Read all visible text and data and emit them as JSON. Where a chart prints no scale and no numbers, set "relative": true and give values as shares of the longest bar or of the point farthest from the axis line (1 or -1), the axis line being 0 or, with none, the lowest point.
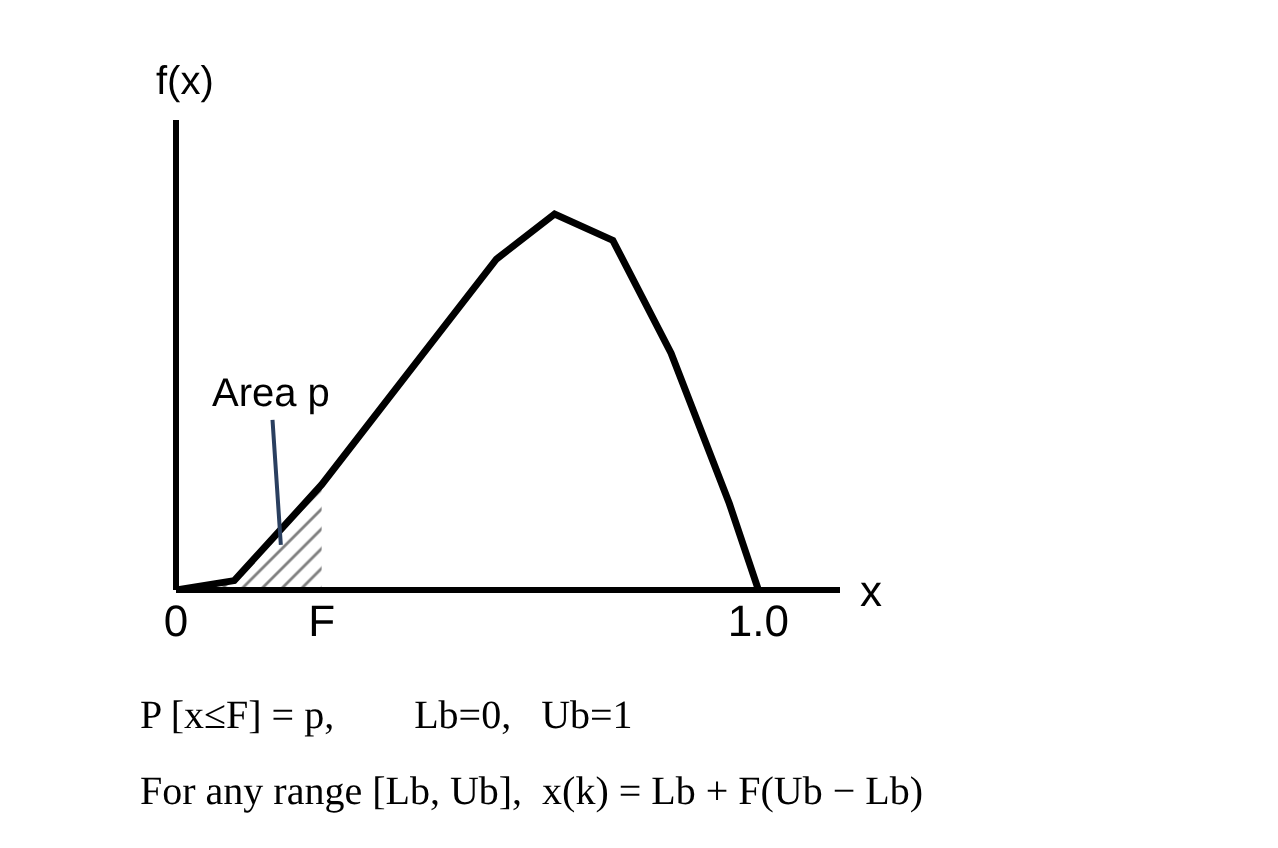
{
  "chart_data": {
    "type": "line",
    "relative": true,
    "xlabel": "x",
    "ylabel": "f(x)",
    "x": [
      0,
      0.1,
      0.25,
      0.4,
      0.55,
      0.65,
      0.75,
      0.85,
      0.95,
      1.0
    ],
    "xlim": [
      0,
      1.14
    ],
    "xticks": [
      0,
      {
        "value": 0.25,
        "label": "F"
      },
      {
        "value": 1.0,
        "label": "1.0"
      }
    ],
    "series": [
      {
        "color": "#000000",
        "values": [
          0,
          0.025,
          0.28,
          0.58,
          0.88,
          1.0,
          0.93,
          0.63,
          0.23,
          0
        ]
      },
      {
        "type": "area",
        "color": "#000000",
        "x": [
          0,
          0.1,
          0.25
        ],
        "values": [
          0,
          0.025,
          0.28
        ]
      }
    ],
    "annotations": [
      {
        "text": "Area p",
        "x": 0.18,
        "y": 0.12
      },
      "P [x≤F] = p,        Lb=0,   Ub=1",
      "For any range [Lb, Ub],  x(k) = Lb + F(Ub − Lb)"
    ],
    "marker": "none",
    "line_style": "solid"
  }
}
